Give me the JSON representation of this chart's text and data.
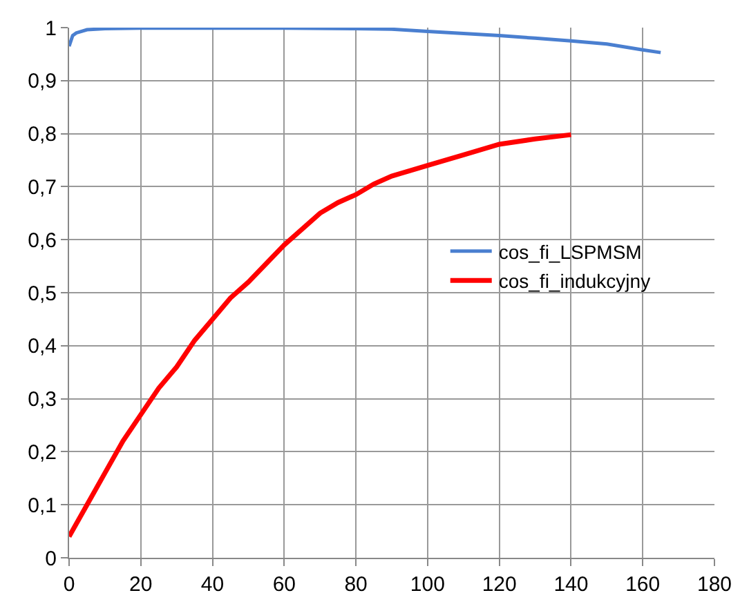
{
  "chart_data": {
    "type": "line",
    "series": [
      {
        "name": "cos_fi_LSPMSM",
        "color": "#4a7fd0",
        "x": [
          0,
          0.5,
          1,
          2,
          5,
          10,
          20,
          40,
          60,
          80,
          90,
          100,
          110,
          120,
          130,
          140,
          150,
          160,
          165
        ],
        "values": [
          0.965,
          0.975,
          0.985,
          0.99,
          0.996,
          0.998,
          0.999,
          0.999,
          0.999,
          0.998,
          0.997,
          0.993,
          0.989,
          0.985,
          0.98,
          0.975,
          0.969,
          0.958,
          0.953
        ]
      },
      {
        "name": "cos_fi_indukcyjny",
        "color": "#ff0000",
        "x": [
          0,
          5,
          10,
          15,
          20,
          25,
          30,
          35,
          40,
          45,
          50,
          55,
          60,
          65,
          70,
          75,
          80,
          85,
          90,
          95,
          100,
          110,
          120,
          130,
          140
        ],
        "values": [
          0.04,
          0.1,
          0.16,
          0.22,
          0.27,
          0.32,
          0.36,
          0.41,
          0.45,
          0.49,
          0.52,
          0.555,
          0.59,
          0.62,
          0.65,
          0.67,
          0.685,
          0.705,
          0.72,
          0.73,
          0.74,
          0.76,
          0.78,
          0.79,
          0.798
        ]
      }
    ],
    "xlim": [
      0,
      180
    ],
    "xticks": [
      0,
      20,
      40,
      60,
      80,
      100,
      120,
      140,
      160,
      180
    ],
    "ylim": [
      0,
      1
    ],
    "yticks": [
      0,
      {
        "value": 0.1,
        "label": "0,1"
      },
      {
        "value": 0.2,
        "label": "0,2"
      },
      {
        "value": 0.3,
        "label": "0,3"
      },
      {
        "value": 0.4,
        "label": "0,4"
      },
      {
        "value": 0.5,
        "label": "0,5"
      },
      {
        "value": 0.6,
        "label": "0,6"
      },
      {
        "value": 0.7,
        "label": "0,7"
      },
      {
        "value": 0.8,
        "label": "0,8"
      },
      {
        "value": 0.9,
        "label": "0,9"
      },
      1
    ],
    "grid": true,
    "legend": "right",
    "marker": "none",
    "line_style": "solid"
  }
}
